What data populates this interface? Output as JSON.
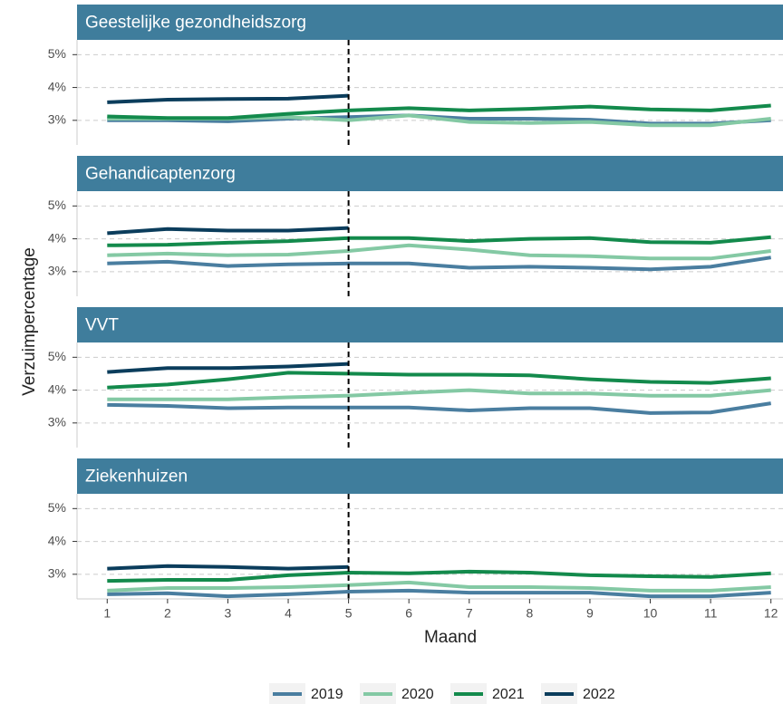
{
  "chart_data": {
    "type": "line",
    "xlabel": "Maand",
    "ylabel": "Verzuimpercentage",
    "x": [
      1,
      2,
      3,
      4,
      5,
      6,
      7,
      8,
      9,
      10,
      11,
      12
    ],
    "xlim": [
      0.5,
      12.2
    ],
    "xticks": [
      1,
      2,
      3,
      4,
      5,
      6,
      7,
      8,
      9,
      10,
      11,
      12
    ],
    "ylim": [
      2.25,
      5.45
    ],
    "yticks": [
      {
        "value": 3,
        "label": "3%"
      },
      {
        "value": 4,
        "label": "4%"
      },
      {
        "value": 5,
        "label": "5%"
      }
    ],
    "grid": true,
    "vline": 5,
    "legend": "bottom",
    "facets": [
      {
        "title": "Geestelijke gezondheidszorg",
        "series": [
          {
            "name": "2019",
            "color": "#4a7ea0",
            "values": [
              3.0,
              3.0,
              2.97,
              3.05,
              3.1,
              3.15,
              3.05,
              3.05,
              3.02,
              2.9,
              2.9,
              3.0
            ]
          },
          {
            "name": "2020",
            "color": "#84c9a4",
            "values": [
              3.05,
              3.05,
              3.05,
              3.1,
              3.0,
              3.15,
              2.95,
              2.92,
              2.95,
              2.85,
              2.85,
              3.05
            ]
          },
          {
            "name": "2021",
            "color": "#138a4c",
            "values": [
              3.12,
              3.07,
              3.07,
              3.2,
              3.3,
              3.37,
              3.3,
              3.35,
              3.42,
              3.33,
              3.3,
              3.45
            ]
          },
          {
            "name": "2022",
            "color": "#0b3d5c",
            "values": [
              3.55,
              3.63,
              3.65,
              3.66,
              3.75,
              null,
              null,
              null,
              null,
              null,
              null,
              null
            ]
          }
        ]
      },
      {
        "title": "Gehandicaptenzorg",
        "series": [
          {
            "name": "2019",
            "color": "#4a7ea0",
            "values": [
              3.25,
              3.3,
              3.17,
              3.22,
              3.25,
              3.25,
              3.12,
              3.15,
              3.12,
              3.07,
              3.15,
              3.43
            ]
          },
          {
            "name": "2020",
            "color": "#84c9a4",
            "values": [
              3.5,
              3.55,
              3.5,
              3.52,
              3.63,
              3.8,
              3.67,
              3.5,
              3.47,
              3.4,
              3.4,
              3.63
            ]
          },
          {
            "name": "2021",
            "color": "#138a4c",
            "values": [
              3.8,
              3.82,
              3.88,
              3.93,
              4.02,
              4.02,
              3.93,
              4.0,
              4.02,
              3.9,
              3.88,
              4.05
            ]
          },
          {
            "name": "2022",
            "color": "#0b3d5c",
            "values": [
              4.17,
              4.3,
              4.25,
              4.25,
              4.33,
              null,
              null,
              null,
              null,
              null,
              null,
              null
            ]
          }
        ]
      },
      {
        "title": "VVT",
        "series": [
          {
            "name": "2019",
            "color": "#4a7ea0",
            "values": [
              3.55,
              3.52,
              3.45,
              3.47,
              3.47,
              3.47,
              3.38,
              3.45,
              3.45,
              3.3,
              3.32,
              3.6
            ]
          },
          {
            "name": "2020",
            "color": "#84c9a4",
            "values": [
              3.72,
              3.72,
              3.72,
              3.78,
              3.83,
              3.92,
              4.0,
              3.9,
              3.9,
              3.83,
              3.83,
              4.0
            ]
          },
          {
            "name": "2021",
            "color": "#138a4c",
            "values": [
              4.08,
              4.17,
              4.33,
              4.53,
              4.5,
              4.47,
              4.47,
              4.45,
              4.33,
              4.25,
              4.22,
              4.36
            ]
          },
          {
            "name": "2022",
            "color": "#0b3d5c",
            "values": [
              4.55,
              4.67,
              4.67,
              4.72,
              4.8,
              null,
              null,
              null,
              null,
              null,
              null,
              null
            ]
          }
        ]
      },
      {
        "title": "Ziekenhuizen",
        "series": [
          {
            "name": "2019",
            "color": "#4a7ea0",
            "values": [
              2.39,
              2.42,
              2.33,
              2.39,
              2.47,
              2.5,
              2.44,
              2.44,
              2.44,
              2.33,
              2.33,
              2.44
            ]
          },
          {
            "name": "2020",
            "color": "#84c9a4",
            "values": [
              2.5,
              2.58,
              2.58,
              2.61,
              2.67,
              2.75,
              2.61,
              2.61,
              2.58,
              2.5,
              2.5,
              2.61
            ]
          },
          {
            "name": "2021",
            "color": "#138a4c",
            "values": [
              2.8,
              2.83,
              2.83,
              2.97,
              3.05,
              3.03,
              3.08,
              3.05,
              2.97,
              2.94,
              2.92,
              3.03
            ]
          },
          {
            "name": "2022",
            "color": "#0b3d5c",
            "values": [
              3.17,
              3.25,
              3.22,
              3.17,
              3.22,
              null,
              null,
              null,
              null,
              null,
              null,
              null
            ]
          }
        ]
      }
    ]
  }
}
